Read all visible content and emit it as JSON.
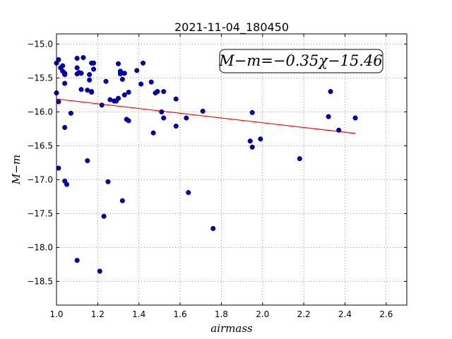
{
  "chart_data": {
    "type": "scatter",
    "title": "2021-11-04_180450",
    "xlabel": "airmass",
    "ylabel": "M−m",
    "xlim": [
      1.0,
      2.7
    ],
    "ylim": [
      -18.85,
      -14.85
    ],
    "y_inverted": true,
    "grid": true,
    "x_ticks": [
      "1.0",
      "1.2",
      "1.4",
      "1.6",
      "1.8",
      "2.0",
      "2.2",
      "2.4",
      "2.6"
    ],
    "y_ticks": [
      "−15.0",
      "−15.5",
      "−16.0",
      "−16.5",
      "−17.0",
      "−17.5",
      "−18.0",
      "−18.5"
    ],
    "annotation": "M−m=−0.35χ−15.46",
    "marker_color": "#0000cc",
    "fit_color": "#ff0000",
    "fit": {
      "slope": -0.35,
      "intercept": -15.46,
      "x_range": [
        1.0,
        2.45
      ]
    },
    "points": [
      [
        1.0,
        -15.28
      ],
      [
        1.01,
        -15.23
      ],
      [
        1.0,
        -15.72
      ],
      [
        1.01,
        -15.85
      ],
      [
        1.01,
        -16.83
      ],
      [
        1.02,
        -15.35
      ],
      [
        1.03,
        -15.32
      ],
      [
        1.03,
        -15.4
      ],
      [
        1.04,
        -15.45
      ],
      [
        1.04,
        -15.43
      ],
      [
        1.04,
        -15.58
      ],
      [
        1.04,
        -16.23
      ],
      [
        1.04,
        -17.02
      ],
      [
        1.05,
        -17.07
      ],
      [
        1.07,
        -16.02
      ],
      [
        1.1,
        -15.21
      ],
      [
        1.1,
        -15.35
      ],
      [
        1.1,
        -15.44
      ],
      [
        1.11,
        -15.42
      ],
      [
        1.12,
        -15.43
      ],
      [
        1.12,
        -15.67
      ],
      [
        1.13,
        -15.2
      ],
      [
        1.15,
        -15.68
      ],
      [
        1.15,
        -16.72
      ],
      [
        1.16,
        -15.45
      ],
      [
        1.16,
        -15.53
      ],
      [
        1.17,
        -15.7
      ],
      [
        1.17,
        -15.71
      ],
      [
        1.17,
        -15.28
      ],
      [
        1.18,
        -15.28
      ],
      [
        1.18,
        -15.37
      ],
      [
        1.1,
        -18.19
      ],
      [
        1.21,
        -18.35
      ],
      [
        1.22,
        -15.9
      ],
      [
        1.23,
        -17.54
      ],
      [
        1.24,
        -15.55
      ],
      [
        1.25,
        -17.03
      ],
      [
        1.26,
        -15.82
      ],
      [
        1.28,
        -15.84
      ],
      [
        1.29,
        -15.84
      ],
      [
        1.3,
        -15.8
      ],
      [
        1.3,
        -15.29
      ],
      [
        1.31,
        -15.4
      ],
      [
        1.31,
        -15.44
      ],
      [
        1.32,
        -15.52
      ],
      [
        1.32,
        -17.31
      ],
      [
        1.33,
        -15.75
      ],
      [
        1.33,
        -15.43
      ],
      [
        1.34,
        -16.11
      ],
      [
        1.35,
        -15.71
      ],
      [
        1.35,
        -16.13
      ],
      [
        1.39,
        -15.39
      ],
      [
        1.41,
        -15.59
      ],
      [
        1.42,
        -15.28
      ],
      [
        1.46,
        -15.56
      ],
      [
        1.47,
        -16.31
      ],
      [
        1.48,
        -15.72
      ],
      [
        1.49,
        -15.7
      ],
      [
        1.51,
        -16.0
      ],
      [
        1.52,
        -15.7
      ],
      [
        1.52,
        -16.09
      ],
      [
        1.58,
        -15.81
      ],
      [
        1.58,
        -16.21
      ],
      [
        1.63,
        -16.09
      ],
      [
        1.64,
        -17.19
      ],
      [
        1.71,
        -15.99
      ],
      [
        1.76,
        -17.72
      ],
      [
        1.94,
        -16.43
      ],
      [
        1.95,
        -16.52
      ],
      [
        1.95,
        -16.01
      ],
      [
        1.99,
        -16.4
      ],
      [
        2.18,
        -16.69
      ],
      [
        2.32,
        -16.07
      ],
      [
        2.33,
        -15.7
      ],
      [
        2.37,
        -16.27
      ],
      [
        2.45,
        -16.09
      ]
    ]
  }
}
